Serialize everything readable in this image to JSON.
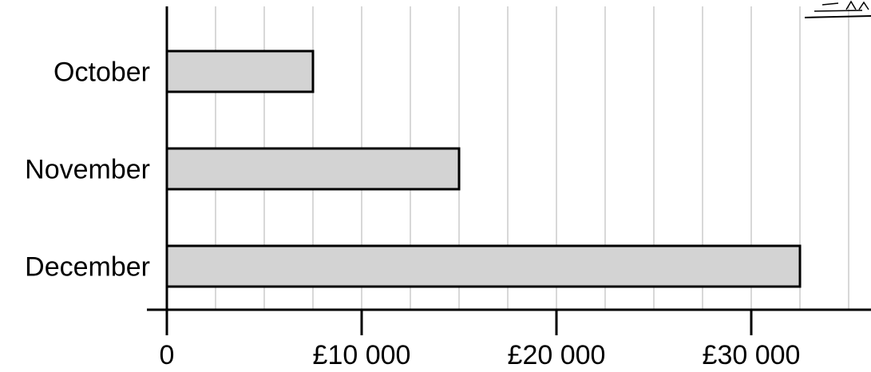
{
  "chart_data": {
    "type": "bar",
    "orientation": "horizontal",
    "categories": [
      "October",
      "November",
      "December"
    ],
    "values": [
      7500,
      15000,
      32500
    ],
    "xlim": [
      0,
      35000
    ],
    "xticks": [
      {
        "value": 0,
        "label": "0"
      },
      {
        "value": 10000,
        "label": "£10 000"
      },
      {
        "value": 20000,
        "label": "£20 000"
      },
      {
        "value": 30000,
        "label": "£30 000"
      }
    ],
    "minor_grid_step": 2500,
    "grid": true,
    "bar_color": "#d3d3d3",
    "bar_outline": "#000000",
    "grid_color": "#b0b0b0"
  }
}
